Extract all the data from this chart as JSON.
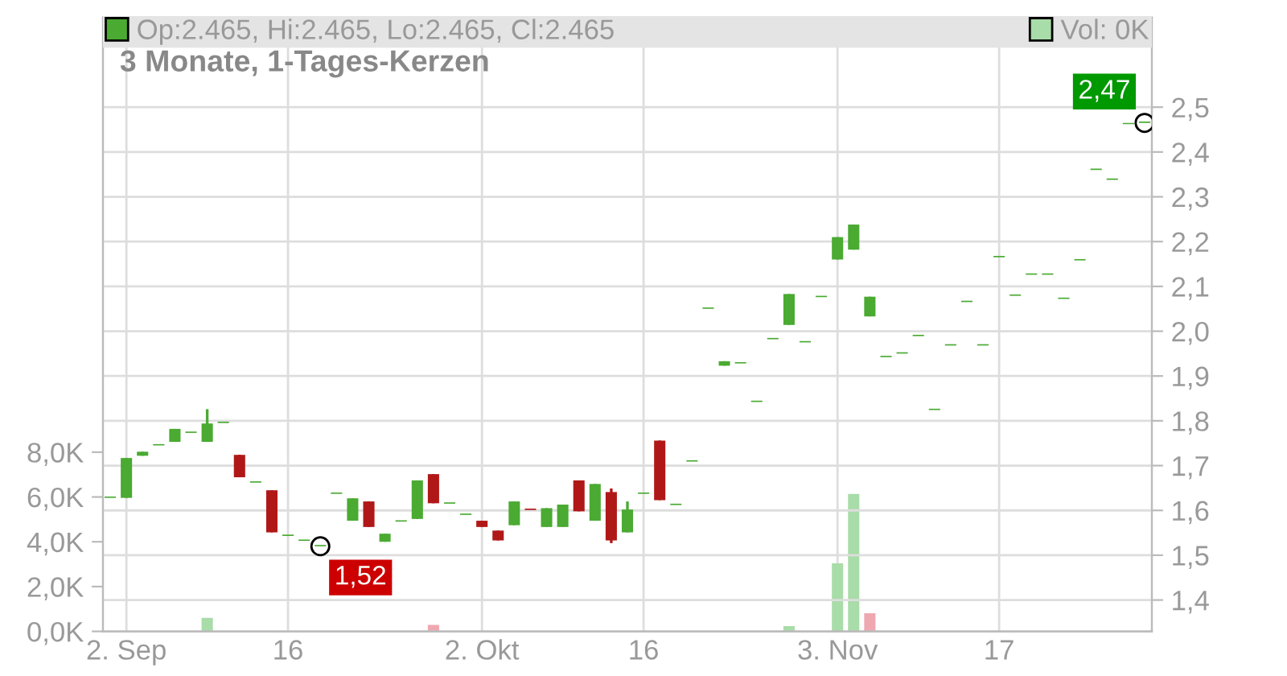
{
  "chart_data": {
    "type": "candlestick",
    "title": "3 Monate, 1-Tages-Kerzen",
    "categories": [
      null,
      "2. Sep",
      null,
      null,
      null,
      null,
      null,
      null,
      null,
      null,
      null,
      "16",
      null,
      null,
      null,
      null,
      null,
      null,
      null,
      null,
      null,
      null,
      null,
      "2. Okt",
      null,
      null,
      null,
      null,
      null,
      null,
      null,
      null,
      null,
      "16",
      null,
      null,
      null,
      null,
      null,
      null,
      null,
      null,
      null,
      null,
      null,
      "3. Nov",
      null,
      null,
      null,
      null,
      null,
      null,
      null,
      null,
      null,
      "17",
      null,
      null,
      null,
      null,
      null,
      null,
      null,
      null,
      null
    ],
    "series": [
      {
        "axis": "y2",
        "name": "Op:2.465, Hi:2.465, Lo:2.465, Cl:2.465",
        "color": "#4aaa32",
        "ohlc": [
          [
            1.628,
            1.628,
            1.628,
            1.628
          ],
          [
            1.628,
            1.717,
            1.628,
            1.717
          ],
          [
            1.722,
            1.731,
            1.722,
            1.731
          ],
          [
            1.745,
            1.745,
            1.745,
            1.745
          ],
          [
            1.753,
            1.782,
            1.753,
            1.782
          ],
          [
            1.773,
            1.773,
            1.773,
            1.773
          ],
          [
            1.753,
            1.826,
            1.753,
            1.794
          ],
          [
            1.795,
            1.795,
            1.795,
            1.795
          ],
          [
            1.724,
            1.724,
            1.674,
            1.674
          ],
          [
            1.662,
            1.662,
            1.662,
            1.662
          ],
          [
            1.645,
            1.645,
            1.551,
            1.551
          ],
          [
            1.543,
            1.543,
            1.543,
            1.543
          ],
          [
            1.532,
            1.532,
            1.532,
            1.532
          ],
          [
            1.52,
            1.52,
            1.52,
            1.52
          ],
          [
            1.637,
            1.637,
            1.637,
            1.637
          ],
          [
            1.577,
            1.627,
            1.577,
            1.627
          ],
          [
            1.62,
            1.62,
            1.563,
            1.563
          ],
          [
            1.53,
            1.548,
            1.53,
            1.548
          ],
          [
            1.575,
            1.575,
            1.575,
            1.575
          ],
          [
            1.581,
            1.667,
            1.581,
            1.667
          ],
          [
            1.681,
            1.681,
            1.616,
            1.616
          ],
          [
            1.615,
            1.615,
            1.615,
            1.615
          ],
          [
            1.59,
            1.59,
            1.59,
            1.59
          ],
          [
            1.577,
            1.577,
            1.563,
            1.563
          ],
          [
            1.555,
            1.555,
            1.533,
            1.533
          ],
          [
            1.567,
            1.62,
            1.567,
            1.62
          ],
          [
            1.601,
            1.601,
            1.601,
            1.601
          ],
          [
            1.563,
            1.605,
            1.563,
            1.605
          ],
          [
            1.563,
            1.613,
            1.563,
            1.613
          ],
          [
            1.667,
            1.667,
            1.598,
            1.598
          ],
          [
            1.577,
            1.659,
            1.577,
            1.659
          ],
          [
            1.641,
            1.649,
            1.527,
            1.533
          ],
          [
            1.551,
            1.62,
            1.551,
            1.602
          ],
          [
            1.637,
            1.637,
            1.637,
            1.637
          ],
          [
            1.756,
            1.756,
            1.623,
            1.623
          ],
          [
            1.612,
            1.612,
            1.612,
            1.612
          ],
          [
            1.709,
            1.709,
            1.709,
            1.709
          ],
          [
            2.05,
            2.05,
            2.05,
            2.05
          ],
          [
            1.923,
            1.933,
            1.923,
            1.933
          ],
          [
            1.928,
            1.928,
            1.928,
            1.928
          ],
          [
            1.842,
            1.842,
            1.842,
            1.842
          ],
          [
            1.982,
            1.982,
            1.982,
            1.982
          ],
          [
            2.014,
            2.083,
            2.014,
            2.083
          ],
          [
            1.975,
            1.975,
            1.975,
            1.975
          ],
          [
            2.076,
            2.076,
            2.076,
            2.076
          ],
          [
            2.16,
            2.21,
            2.16,
            2.21
          ],
          [
            2.182,
            2.238,
            2.182,
            2.238
          ],
          [
            2.033,
            2.077,
            2.033,
            2.077
          ],
          [
            1.942,
            1.942,
            1.942,
            1.942
          ],
          [
            1.95,
            1.95,
            1.95,
            1.95
          ],
          [
            1.989,
            1.989,
            1.989,
            1.989
          ],
          [
            1.824,
            1.824,
            1.824,
            1.824
          ],
          [
            1.968,
            1.968,
            1.968,
            1.968
          ],
          [
            2.065,
            2.065,
            2.065,
            2.065
          ],
          [
            1.968,
            1.968,
            1.968,
            1.968
          ],
          [
            2.165,
            2.165,
            2.165,
            2.165
          ],
          [
            2.079,
            2.079,
            2.079,
            2.079
          ],
          [
            2.126,
            2.126,
            2.126,
            2.126
          ],
          [
            2.126,
            2.126,
            2.126,
            2.126
          ],
          [
            2.072,
            2.072,
            2.072,
            2.072
          ],
          [
            2.158,
            2.158,
            2.158,
            2.158
          ],
          [
            2.36,
            2.36,
            2.36,
            2.36
          ],
          [
            2.338,
            2.338,
            2.338,
            2.338
          ],
          [
            2.462,
            2.462,
            2.462,
            2.462
          ],
          [
            2.465,
            2.465,
            2.465,
            2.465
          ]
        ],
        "colors": [
          "#4aaa32",
          "#4aaa32",
          "#4aaa32",
          "#4aaa32",
          "#4aaa32",
          "#4aaa32",
          "#4aaa32",
          "#4aaa32",
          "#b01818",
          "#4aaa32",
          "#b01818",
          "#4aaa32",
          "#4aaa32",
          "#4aaa32",
          "#4aaa32",
          "#4aaa32",
          "#b01818",
          "#4aaa32",
          "#4aaa32",
          "#4aaa32",
          "#b01818",
          "#4aaa32",
          "#4aaa32",
          "#b01818",
          "#b01818",
          "#4aaa32",
          "#b01818",
          "#4aaa32",
          "#4aaa32",
          "#b01818",
          "#4aaa32",
          "#b01818",
          "#4aaa32",
          "#4aaa32",
          "#b01818",
          "#4aaa32",
          "#4aaa32",
          "#4aaa32",
          "#4aaa32",
          "#4aaa32",
          "#4aaa32",
          "#4aaa32",
          "#4aaa32",
          "#4aaa32",
          "#4aaa32",
          "#4aaa32",
          "#4aaa32",
          "#4aaa32",
          "#4aaa32",
          "#4aaa32",
          "#4aaa32",
          "#4aaa32",
          "#4aaa32",
          "#4aaa32",
          "#4aaa32",
          "#4aaa32",
          "#4aaa32",
          "#4aaa32",
          "#4aaa32",
          "#4aaa32",
          "#4aaa32",
          "#4aaa32",
          "#4aaa32",
          "#4aaa32",
          "#4aaa32"
        ]
      },
      {
        "type": "bar",
        "name": "Vol: 0K",
        "color": "#a8dca8",
        "values": [
          0,
          0,
          0,
          0,
          0,
          0,
          0.6,
          0,
          0,
          0,
          0,
          0,
          0,
          0,
          0,
          0,
          0,
          0,
          0,
          0,
          0.29,
          0,
          0,
          0,
          0,
          0,
          0,
          0,
          0,
          0,
          0,
          0,
          0,
          0,
          0,
          0,
          0,
          0,
          0,
          0,
          0,
          0,
          0.24,
          0,
          0,
          3.04,
          6.14,
          0.81,
          0,
          0,
          0,
          0,
          0,
          0,
          0,
          0,
          0,
          0,
          0,
          0,
          0,
          0,
          0,
          0,
          0
        ],
        "colors": [
          "#a8dca8",
          "#a8dca8",
          "#a8dca8",
          "#a8dca8",
          "#a8dca8",
          "#a8dca8",
          "#a8dca8",
          "#a8dca8",
          "#a8dca8",
          "#a8dca8",
          "#a8dca8",
          "#a8dca8",
          "#a8dca8",
          "#a8dca8",
          "#a8dca8",
          "#a8dca8",
          "#a8dca8",
          "#a8dca8",
          "#a8dca8",
          "#a8dca8",
          "#f0a8b0",
          "#a8dca8",
          "#a8dca8",
          "#a8dca8",
          "#a8dca8",
          "#a8dca8",
          "#a8dca8",
          "#a8dca8",
          "#a8dca8",
          "#a8dca8",
          "#a8dca8",
          "#a8dca8",
          "#a8dca8",
          "#a8dca8",
          "#a8dca8",
          "#a8dca8",
          "#a8dca8",
          "#a8dca8",
          "#a8dca8",
          "#a8dca8",
          "#a8dca8",
          "#a8dca8",
          "#a8dca8",
          "#a8dca8",
          "#a8dca8",
          "#a8dca8",
          "#a8dca8",
          "#f0a8b0",
          "#a8dca8",
          "#a8dca8",
          "#a8dca8",
          "#a8dca8",
          "#a8dca8",
          "#a8dca8",
          "#a8dca8",
          "#a8dca8",
          "#a8dca8",
          "#a8dca8",
          "#a8dca8",
          "#a8dca8",
          "#a8dca8",
          "#a8dca8",
          "#a8dca8",
          "#a8dca8",
          "#a8dca8"
        ]
      }
    ],
    "ylim": [
      0,
      27.4
    ],
    "yticks": [
      {
        "value": 0,
        "label": "0,0K"
      },
      {
        "value": 2,
        "label": "2,0K"
      },
      {
        "value": 4,
        "label": "4,0K"
      },
      {
        "value": 6,
        "label": "6,0K"
      },
      {
        "value": 8,
        "label": "8,0K"
      }
    ],
    "y2lim": [
      1.33,
      2.7
    ],
    "y2ticks": [
      {
        "value": 1.4,
        "label": "1,4"
      },
      {
        "value": 1.5,
        "label": "1,5"
      },
      {
        "value": 1.6,
        "label": "1,6"
      },
      {
        "value": 1.7,
        "label": "1,7"
      },
      {
        "value": 1.8,
        "label": "1,8"
      },
      {
        "value": 1.9,
        "label": "1,9"
      },
      {
        "value": 2.0,
        "label": "2,0"
      },
      {
        "value": 2.1,
        "label": "2,1"
      },
      {
        "value": 2.2,
        "label": "2,2"
      },
      {
        "value": 2.3,
        "label": "2,3"
      },
      {
        "value": 2.4,
        "label": "2,4"
      },
      {
        "value": 2.5,
        "label": "2,5"
      }
    ],
    "annotations": [
      "1,52",
      "2,47"
    ],
    "grid": true,
    "legend": "top"
  }
}
